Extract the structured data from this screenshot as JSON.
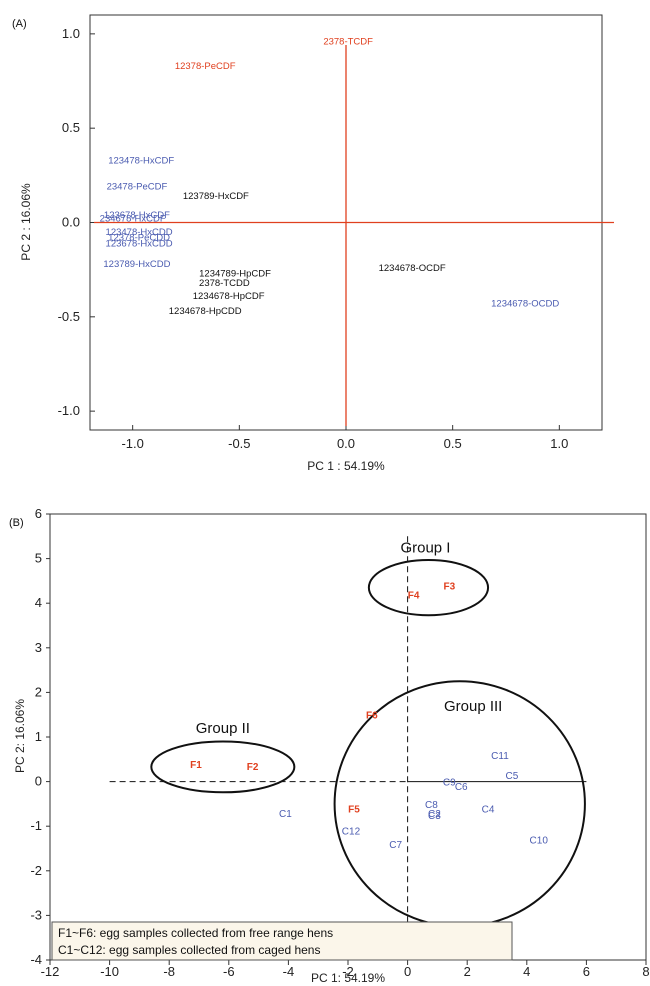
{
  "colors": {
    "red": "#e0401f",
    "blue": "#4a5bb0",
    "black": "#111111",
    "legend_bg": "#fbf6ea"
  },
  "chart_data": [
    {
      "type": "scatter",
      "panel_label": "(A)",
      "xlabel": "PC 1 : 54.19%",
      "ylabel": "PC 2 : 16.06%",
      "xlim": [
        -1.2,
        1.2
      ],
      "ylim": [
        -1.1,
        1.1
      ],
      "xticks": [
        "-1.0",
        "-0.5",
        "0.0",
        "0.5",
        "1.0"
      ],
      "xtick_values": [
        -1.0,
        -0.5,
        0.0,
        0.5,
        1.0
      ],
      "yticks": [
        "1.0",
        "0.5",
        "0.0",
        "-0.5",
        "-1.0"
      ],
      "ytick_values": [
        1.0,
        0.5,
        0.0,
        -0.5,
        -1.0
      ],
      "points": [
        {
          "label": "2378-TCDF",
          "x": 0.01,
          "y": 0.96,
          "color": "red"
        },
        {
          "label": "12378-PeCDF",
          "x": -0.66,
          "y": 0.83,
          "color": "red"
        },
        {
          "label": "123478-HxCDF",
          "x": -0.96,
          "y": 0.33,
          "color": "blue"
        },
        {
          "label": "23478-PeCDF",
          "x": -0.98,
          "y": 0.19,
          "color": "blue"
        },
        {
          "label": "123789-HxCDF",
          "x": -0.61,
          "y": 0.14,
          "color": "black"
        },
        {
          "label": "123678-HxCDF",
          "x": -0.98,
          "y": 0.04,
          "color": "blue"
        },
        {
          "label": "234678-HxCDF",
          "x": -1.0,
          "y": 0.02,
          "color": "blue"
        },
        {
          "label": "123478-HxCDD",
          "x": -0.97,
          "y": -0.05,
          "color": "blue"
        },
        {
          "label": "12378-PeCDD",
          "x": -0.97,
          "y": -0.08,
          "color": "blue"
        },
        {
          "label": "123678-HxCDD",
          "x": -0.97,
          "y": -0.11,
          "color": "blue"
        },
        {
          "label": "123789-HxCDD",
          "x": -0.98,
          "y": -0.22,
          "color": "blue"
        },
        {
          "label": "1234789-HpCDF",
          "x": -0.52,
          "y": -0.27,
          "color": "black"
        },
        {
          "label": "2378-TCDD",
          "x": -0.57,
          "y": -0.32,
          "color": "black"
        },
        {
          "label": "1234678-HpCDF",
          "x": -0.55,
          "y": -0.39,
          "color": "black"
        },
        {
          "label": "1234678-HpCDD",
          "x": -0.66,
          "y": -0.47,
          "color": "black"
        },
        {
          "label": "1234678-OCDF",
          "x": 0.31,
          "y": -0.24,
          "color": "black"
        },
        {
          "label": "1234678-OCDD",
          "x": 0.84,
          "y": -0.43,
          "color": "blue"
        }
      ],
      "reference_lines": {
        "x": 0,
        "y": 0,
        "color": "red"
      }
    },
    {
      "type": "scatter",
      "panel_label": "(B)",
      "xlabel": "PC 1: 54.19%",
      "ylabel": "PC 2: 16.06%",
      "xlim": [
        -12,
        8
      ],
      "ylim": [
        -4,
        6
      ],
      "xticks": [
        "-12",
        "-10",
        "-8",
        "-6",
        "-4",
        "-2",
        "0",
        "2",
        "4",
        "6",
        "8"
      ],
      "xtick_values": [
        -12,
        -10,
        -8,
        -6,
        -4,
        -2,
        0,
        2,
        4,
        6,
        8
      ],
      "yticks": [
        "6",
        "5",
        "4",
        "3",
        "2",
        "1",
        "0",
        "-1",
        "-2",
        "-3",
        "-4"
      ],
      "ytick_values": [
        6,
        5,
        4,
        3,
        2,
        1,
        0,
        -1,
        -2,
        -3,
        -4
      ],
      "points": [
        {
          "label": "F1",
          "x": -7.1,
          "y": 0.4,
          "color": "red"
        },
        {
          "label": "F2",
          "x": -5.2,
          "y": 0.35,
          "color": "red"
        },
        {
          "label": "F3",
          "x": 1.4,
          "y": 4.4,
          "color": "red"
        },
        {
          "label": "F4",
          "x": 0.2,
          "y": 4.2,
          "color": "red"
        },
        {
          "label": "F5",
          "x": -1.8,
          "y": -0.6,
          "color": "red"
        },
        {
          "label": "F6",
          "x": -1.2,
          "y": 1.5,
          "color": "red"
        },
        {
          "label": "C1",
          "x": -4.1,
          "y": -0.7,
          "color": "blue"
        },
        {
          "label": "C2",
          "x": 0.9,
          "y": -0.7,
          "color": "blue"
        },
        {
          "label": "C3",
          "x": 0.9,
          "y": -0.75,
          "color": "blue"
        },
        {
          "label": "C4",
          "x": 2.7,
          "y": -0.6,
          "color": "blue"
        },
        {
          "label": "C5",
          "x": 3.5,
          "y": 0.15,
          "color": "blue"
        },
        {
          "label": "C6",
          "x": 1.8,
          "y": -0.1,
          "color": "blue"
        },
        {
          "label": "C7",
          "x": -0.4,
          "y": -1.4,
          "color": "blue"
        },
        {
          "label": "C8",
          "x": 0.8,
          "y": -0.5,
          "color": "blue"
        },
        {
          "label": "C9",
          "x": 1.4,
          "y": 0.0,
          "color": "blue"
        },
        {
          "label": "C10",
          "x": 4.4,
          "y": -1.3,
          "color": "blue"
        },
        {
          "label": "C11",
          "x": 3.1,
          "y": 0.6,
          "color": "blue"
        },
        {
          "label": "C12",
          "x": -1.9,
          "y": -1.1,
          "color": "blue"
        }
      ],
      "groups": [
        {
          "label": "Group I",
          "cx": 0.7,
          "cy": 4.35,
          "rx": 2.0,
          "ry": 0.62,
          "label_x": 0.6,
          "label_y": 5.25
        },
        {
          "label": "Group II",
          "cx": -6.2,
          "cy": 0.33,
          "rx": 2.4,
          "ry": 0.57,
          "label_x": -6.2,
          "label_y": 1.2
        },
        {
          "label": "Group III",
          "cx": 1.75,
          "cy": -0.5,
          "rx": 4.2,
          "ry": 2.75,
          "label_x": 2.2,
          "label_y": 1.7
        }
      ],
      "reference_lines": {
        "x": 0,
        "y": 0,
        "style": "dashed",
        "color": "black"
      },
      "legend": {
        "placement": "bottom-left",
        "entries": [
          "F1~F6: egg samples collected from free range hens",
          "C1~C12: egg samples collected from caged hens"
        ]
      }
    }
  ]
}
